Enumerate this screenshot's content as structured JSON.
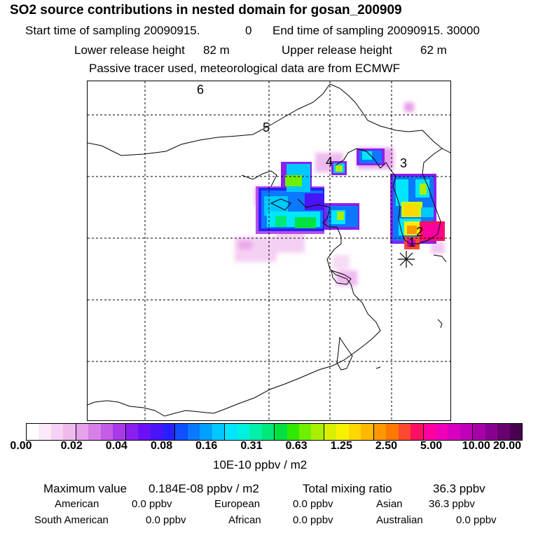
{
  "title": "SO2 source contributions in nested domain for gosan_200909",
  "sampling": {
    "start_label": "Start time of sampling 20090915.",
    "start_hour": "0",
    "end_label": "End time of sampling 20090915. 30000"
  },
  "release": {
    "lower_label": "Lower release height",
    "lower_value": "82 m",
    "upper_label": "Upper release height",
    "upper_value": "62 m"
  },
  "tracer_note": "Passive tracer used, meteorological data are from ECMWF",
  "map": {
    "source_labels": [
      "6",
      "5",
      "4",
      "3",
      "2",
      "1"
    ],
    "receptor_marker": "gosan-station-star-icon"
  },
  "colorbar": {
    "tick_labels": [
      "0.00",
      "0.02",
      "0.04",
      "0.08",
      "0.16",
      "0.31",
      "0.63",
      "1.25",
      "2.50",
      "5.00",
      "10.00",
      "20.00"
    ],
    "unit": "10E-10 ppbv / m2",
    "colors": [
      "#ffffff",
      "#fbe8fb",
      "#f5d2f5",
      "#eebbee",
      "#e6a2ea",
      "#d77fe8",
      "#c45ce5",
      "#a83aea",
      "#8a1ff0",
      "#6a10f5",
      "#4b14f8",
      "#2a20ff",
      "#1050ff",
      "#0a78ff",
      "#00a0ff",
      "#00c8ff",
      "#00e6ff",
      "#00f0e0",
      "#00f0a8",
      "#00e878",
      "#00e040",
      "#30e800",
      "#70f000",
      "#a8f000",
      "#d8f000",
      "#f8f000",
      "#ffd800",
      "#ffb800",
      "#ff9800",
      "#ff7800",
      "#ff4830",
      "#ff1060",
      "#ff00a0",
      "#f000b8",
      "#d800c0",
      "#c000b8",
      "#a800a8",
      "#880090",
      "#680070",
      "#480050"
    ]
  },
  "summary": {
    "max_label": "Maximum value",
    "max_value": "0.184E-08 ppbv / m2",
    "total_label": "Total mixing ratio",
    "total_value": "36.3 ppbv"
  },
  "regions": [
    {
      "name": "American",
      "value": "0.0 ppbv"
    },
    {
      "name": "European",
      "value": "0.0 ppbv"
    },
    {
      "name": "Asian",
      "value": "36.3 ppbv"
    },
    {
      "name": "South American",
      "value": "0.0 ppbv"
    },
    {
      "name": "African",
      "value": "0.0 ppbv"
    },
    {
      "name": "Australian",
      "value": "0.0 ppbv"
    }
  ]
}
